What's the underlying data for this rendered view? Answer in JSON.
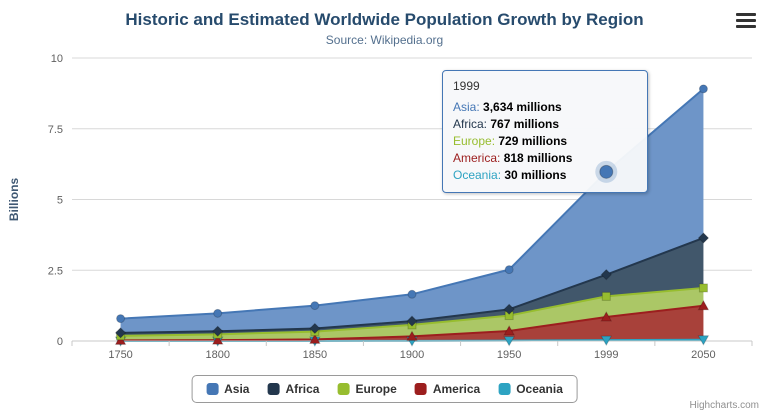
{
  "header": {
    "title": "Historic and Estimated Worldwide Population Growth by Region",
    "subtitle": "Source: Wikipedia.org"
  },
  "chart_data": {
    "type": "area",
    "stacked": true,
    "categories": [
      "1750",
      "1800",
      "1850",
      "1900",
      "1950",
      "1999",
      "2050"
    ],
    "unit": "millions",
    "ylabel": "Billions",
    "ylim": [
      0,
      10
    ],
    "yticks": [
      0,
      2.5,
      5,
      7.5,
      10
    ],
    "stack_order_bottom_to_top": [
      "Oceania",
      "America",
      "Europe",
      "Africa",
      "Asia"
    ],
    "series": [
      {
        "name": "Asia",
        "marker": "circle",
        "color": "#4577b5",
        "fill": "#6e95c8",
        "values": [
          502,
          635,
          809,
          947,
          1402,
          3634,
          5268
        ]
      },
      {
        "name": "Africa",
        "marker": "diamond",
        "color": "#23374d",
        "fill": "#41576b",
        "values": [
          106,
          107,
          111,
          133,
          221,
          767,
          1766
        ]
      },
      {
        "name": "Europe",
        "marker": "square",
        "color": "#97bd2f",
        "fill": "#abc766",
        "values": [
          163,
          203,
          276,
          408,
          547,
          729,
          628
        ]
      },
      {
        "name": "America",
        "marker": "triangle",
        "color": "#9c1e1e",
        "fill": "#a8413a",
        "values": [
          18,
          31,
          54,
          156,
          339,
          818,
          1201
        ]
      },
      {
        "name": "Oceania",
        "marker": "triangle-down",
        "color": "#2da3c2",
        "fill": "#62b8cd",
        "values": [
          2,
          2,
          2,
          6,
          13,
          30,
          46
        ]
      }
    ],
    "hover": {
      "category": "1999",
      "series": "Asia"
    }
  },
  "tooltip": {
    "header": "1999",
    "rows": [
      {
        "name": "Asia",
        "value": "3,634 millions"
      },
      {
        "name": "Africa",
        "value": "767 millions"
      },
      {
        "name": "Europe",
        "value": "729 millions"
      },
      {
        "name": "America",
        "value": "818 millions"
      },
      {
        "name": "Oceania",
        "value": "30 millions"
      }
    ]
  },
  "legend": {
    "items": [
      "Asia",
      "Africa",
      "Europe",
      "America",
      "Oceania"
    ]
  },
  "credits": {
    "label": "Highcharts.com"
  },
  "colors": {
    "title": "#274b6d",
    "subtitle": "#54708e",
    "axis_text": "#606060",
    "axis_title": "#3f5873",
    "grid": "#d8d8d8",
    "axis_line": "#c8c8c8",
    "tooltip_border": "#4577b5",
    "tooltip_bg": "rgba(247,248,250,0.96)",
    "legend_text": "#333333",
    "legend_border": "#9a9a9a",
    "credits": "#909090"
  }
}
